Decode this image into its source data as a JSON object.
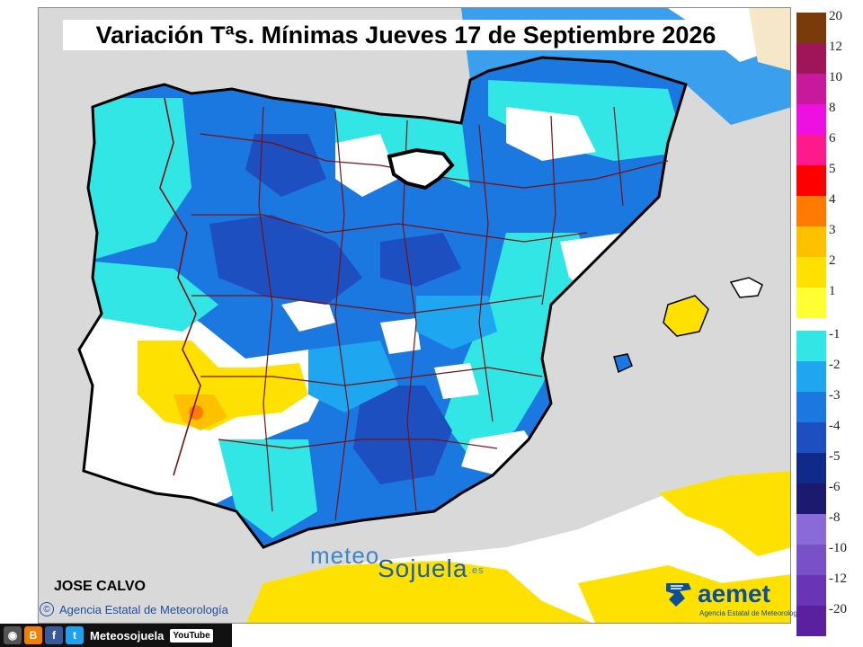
{
  "title": "Variación Tªs. Mínimas Jueves 17 de Septiembre 2026",
  "author": "JOSE CALVO",
  "copyright": "Agencia Estatal de Meteorología",
  "copyright_symbol": "©",
  "watermark": {
    "part1": "meteo",
    "part2": "Sojuela",
    "part3": ".es"
  },
  "aemet": {
    "name": "aemet",
    "subtitle": "Agencia Estatal de Meteorología"
  },
  "social": {
    "handle": "Meteosojuela",
    "youtube": "YouTube",
    "blogger": "B",
    "facebook": "f",
    "twitter": "t"
  },
  "legend": {
    "warm": [
      {
        "label": "20",
        "color": "#7a3a0a"
      },
      {
        "label": "12",
        "color": "#a0145a"
      },
      {
        "label": "10",
        "color": "#c8189b"
      },
      {
        "label": "8",
        "color": "#ee10e0"
      },
      {
        "label": "6",
        "color": "#ff1a8c"
      },
      {
        "label": "5",
        "color": "#ff0000"
      },
      {
        "label": "4",
        "color": "#ff7a00"
      },
      {
        "label": "3",
        "color": "#ffc000"
      },
      {
        "label": "2",
        "color": "#ffe100"
      },
      {
        "label": "1",
        "color": "#ffff33"
      }
    ],
    "cold": [
      {
        "label": "-1",
        "color": "#33e6e6"
      },
      {
        "label": "-2",
        "color": "#1fa6f0"
      },
      {
        "label": "-3",
        "color": "#1a78e0"
      },
      {
        "label": "-4",
        "color": "#1d4fc0"
      },
      {
        "label": "-5",
        "color": "#102a8a"
      },
      {
        "label": "-6",
        "color": "#1a1a70"
      },
      {
        "label": "-8",
        "color": "#8a6ad8"
      },
      {
        "label": "-10",
        "color": "#7a50c8"
      },
      {
        "label": "-12",
        "color": "#6a34b6"
      },
      {
        "label": "-20",
        "color": "#5a20a0"
      }
    ]
  },
  "colors": {
    "sea": "#d9d9d9",
    "land_neutral": "#ffffff",
    "border": "#000000",
    "province_lines": "#7a1010"
  }
}
